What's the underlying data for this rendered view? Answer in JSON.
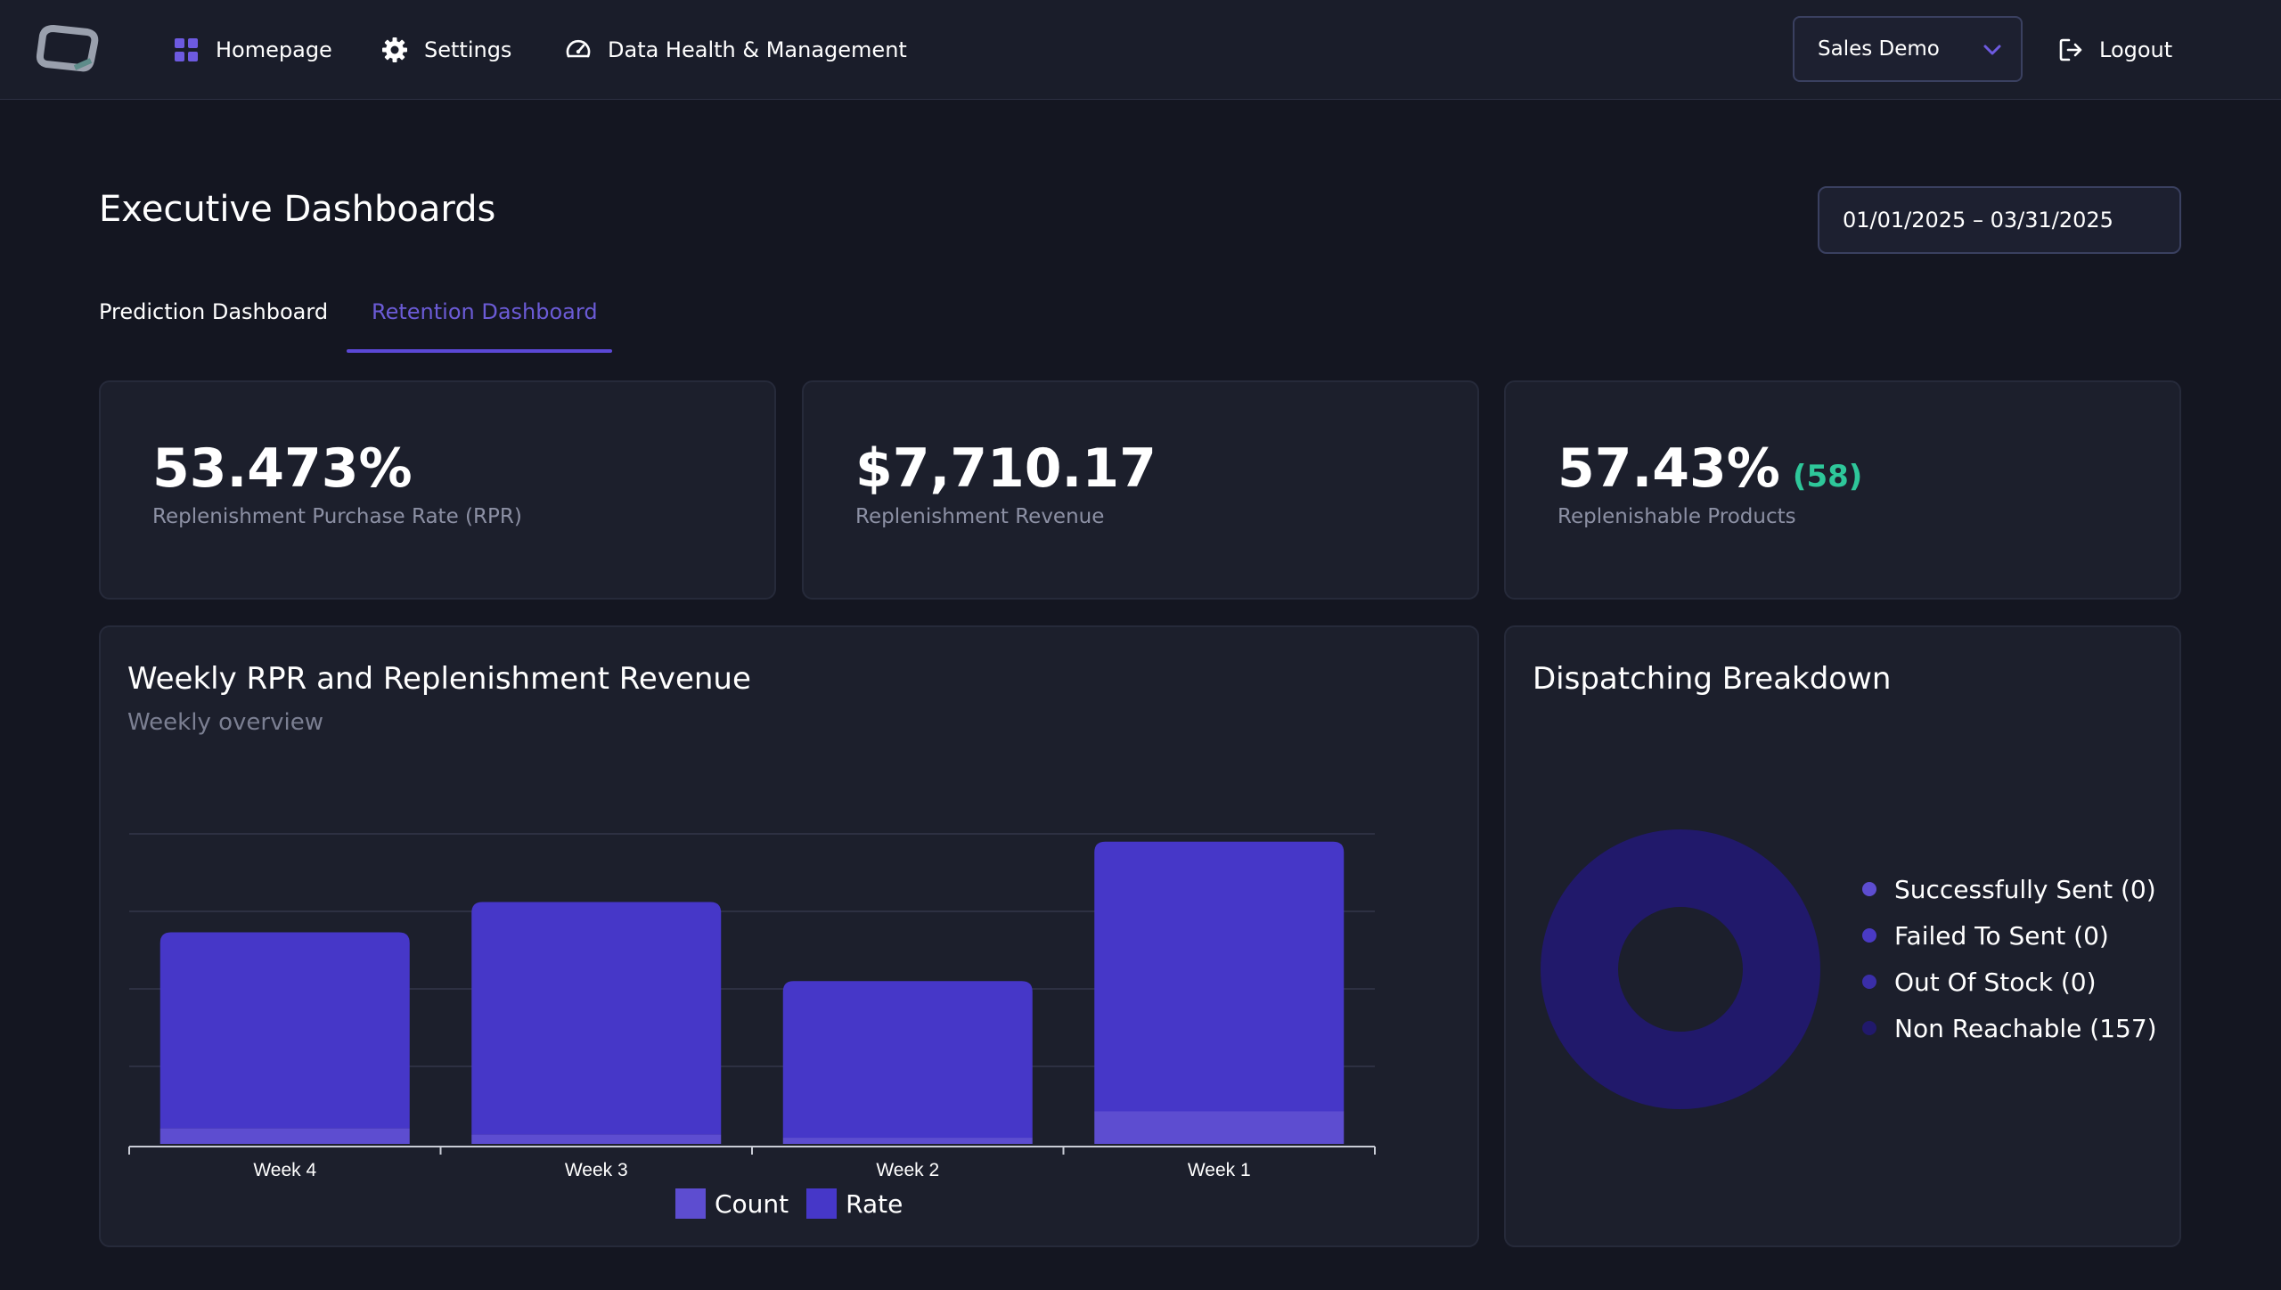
{
  "nav": {
    "items": [
      {
        "label": "Homepage",
        "icon": "grid-icon"
      },
      {
        "label": "Settings",
        "icon": "gear-icon"
      },
      {
        "label": "Data Health & Management",
        "icon": "gauge-icon"
      }
    ],
    "org_select": "Sales Demo",
    "logout_label": "Logout"
  },
  "header": {
    "title": "Executive Dashboards",
    "date_range": "01/01/2025 – 03/31/2025"
  },
  "tabs": [
    {
      "label": "Prediction Dashboard",
      "active": false
    },
    {
      "label": "Retention Dashboard",
      "active": true
    }
  ],
  "kpis": [
    {
      "value": "53.473%",
      "sub": "",
      "label": "Replenishment Purchase Rate (RPR)"
    },
    {
      "value": "$7,710.17",
      "sub": "",
      "label": "Replenishment Revenue"
    },
    {
      "value": "57.43%",
      "sub": "(58)",
      "label": "Replenishable Products"
    }
  ],
  "weekly_chart": {
    "title": "Weekly RPR and Replenishment Revenue",
    "subtitle": "Weekly overview"
  },
  "dispatch_chart": {
    "title": "Dispatching Breakdown"
  },
  "colors": {
    "accent": "#5b48d6",
    "count": "#5d4dd0",
    "rate": "#4637c8",
    "positive": "#2ec79a"
  },
  "chart_data": [
    {
      "type": "bar",
      "title": "Weekly RPR and Replenishment Revenue",
      "subtitle": "Weekly overview",
      "categories": [
        "Week 4",
        "Week 3",
        "Week 2",
        "Week 1"
      ],
      "stacked": true,
      "series": [
        {
          "name": "Count",
          "color": "#5d4dd0",
          "values": [
            0.2,
            0.12,
            0.08,
            0.42
          ]
        },
        {
          "name": "Rate",
          "color": "#4637c8",
          "values": [
            2.53,
            3.0,
            2.02,
            3.48
          ]
        }
      ],
      "ylim": [
        0,
        4
      ],
      "grid": true,
      "legend": "bottom"
    },
    {
      "type": "pie",
      "title": "Dispatching Breakdown",
      "donut": true,
      "legend": "right",
      "slices": [
        {
          "label": "Successfully Sent",
          "value": 0,
          "color": "#5d4dd0"
        },
        {
          "label": "Failed To Sent",
          "value": 0,
          "color": "#4a3ac4"
        },
        {
          "label": "Out Of Stock",
          "value": 0,
          "color": "#3a2ea8"
        },
        {
          "label": "Non Reachable",
          "value": 157,
          "color": "#21196b"
        }
      ]
    }
  ]
}
